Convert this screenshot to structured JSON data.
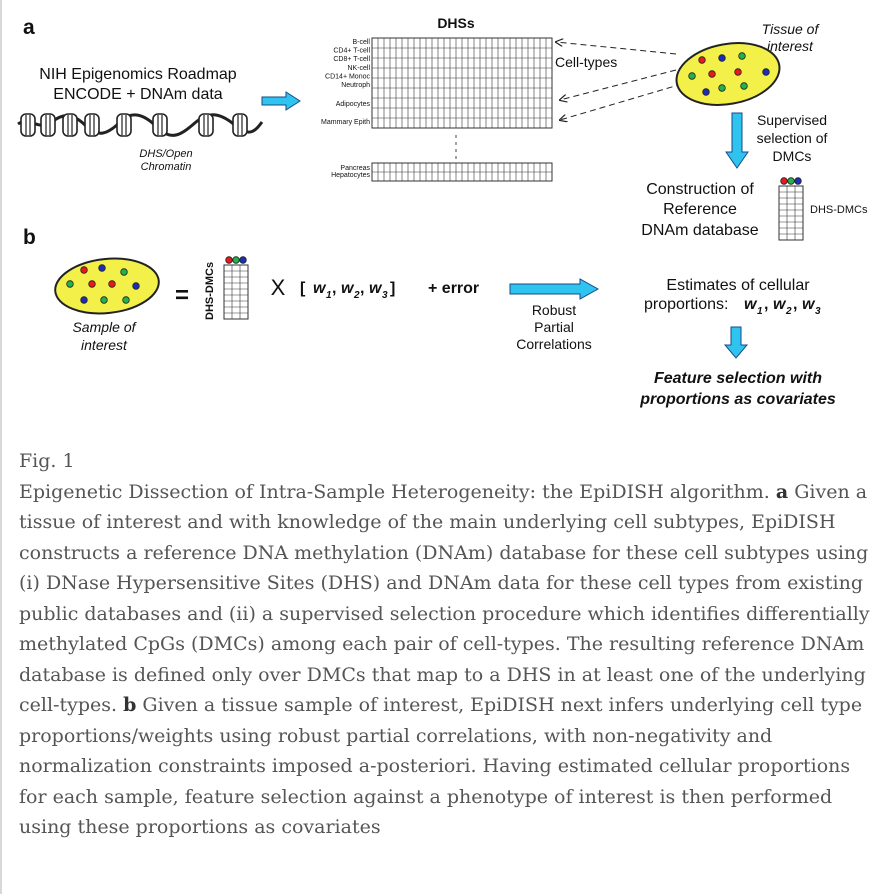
{
  "figure": {
    "panel_a": {
      "label": "a",
      "source_title_line1": "NIH Epigenomics Roadmap",
      "source_title_line2": "ENCODE + DNAm data",
      "chromatin_label_line1": "DHS/Open",
      "chromatin_label_line2": "Chromatin",
      "matrix_title": "DHSs",
      "cell_types_top": [
        "B-cell",
        "CD4+ T-cell",
        "CD8+ T-cell",
        "NK-cell",
        "CD14+ Monoc",
        "Neutroph"
      ],
      "cell_types_mid": [
        "Adipocytes",
        "Mammary Epith"
      ],
      "cell_types_bottom": [
        "Pancreas",
        "Hepatocytes"
      ],
      "cell_types_label": "Cell-types",
      "tissue_label_line1": "Tissue of",
      "tissue_label_line2": "interest",
      "supervised_line1": "Supervised",
      "supervised_line2": "selection of",
      "supervised_line3": "DMCs",
      "construction_line1": "Construction of",
      "construction_line2": "Reference",
      "construction_line3": "DNAm database",
      "dhs_dmcs_label": "DHS-DMCs"
    },
    "panel_b": {
      "label": "b",
      "sample_label_line1": "Sample of",
      "sample_label_line2": "interest",
      "equals": "=",
      "matrix_label": "DHS-DMCs",
      "times": "X",
      "weights_open": "[",
      "weights": [
        "w",
        "w",
        "w"
      ],
      "weight_subscripts": [
        "1",
        "2",
        "3"
      ],
      "weights_close": "]",
      "error_term": "+ error",
      "method_line1": "Robust",
      "method_line2": "Partial",
      "method_line3": "Correlations",
      "estimates_line1": "Estimates of cellular",
      "estimates_line2_prefix": "proportions:",
      "feature_line1": "Feature selection with",
      "feature_line2": "proportions as covariates"
    },
    "colors": {
      "arrow_fill": "#2ec4ef",
      "arrow_stroke": "#1a4a8a",
      "ellipse_fill": "#f4f04a",
      "dot_red": "#e8191c",
      "dot_green": "#22b24c",
      "dot_blue": "#1a2fb8",
      "grid_line": "#333333"
    }
  },
  "caption": {
    "fig_label": "Fig. 1",
    "title_sentence": "Epigenetic Dissection of Intra-Sample Heterogeneity: the EpiDISH algorithm.",
    "label_a": "a",
    "text_a": "Given a tissue of interest and with knowledge of the main underlying cell subtypes, EpiDISH constructs a reference DNA methylation (DNAm) database for these cell subtypes using (i) DNase Hypersensitive Sites (DHS) and DNAm data for these cell types from existing public databases and (ii) a supervised selection procedure which identifies differentially methylated CpGs (DMCs) among each pair of cell-types. The resulting reference DNAm database is defined only over DMCs that map to a DHS in at least one of the underlying cell-types.",
    "label_b": "b",
    "text_b": "Given a tissue sample of interest, EpiDISH next infers underlying cell type proportions/weights using robust partial correlations, with non-negativity and normalization constraints imposed a-posteriori. Having estimated cellular proportions for each sample, feature selection against a phenotype of interest is then performed using these proportions as covariates"
  }
}
